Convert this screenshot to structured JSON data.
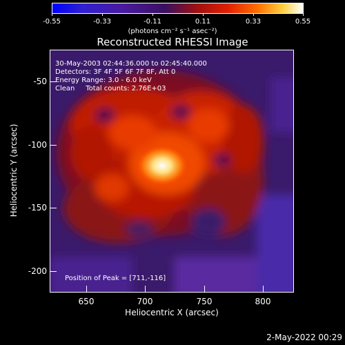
{
  "colorbar": {
    "ticks": [
      "-0.55",
      "-0.33",
      "-0.11",
      "0.11",
      "0.33",
      "0.55"
    ],
    "label": "(photons cm⁻² s⁻¹ asec⁻²)"
  },
  "title": "Reconstructed RHESSI Image",
  "annotations": {
    "time_range": "30-May-2003 02:44:36.000 to 02:45:40.000",
    "detectors": "Detectors: 3F 4F 5F 6F 7F 8F, Att 0",
    "energy": "Energy Range: 3.0 - 6.0 keV",
    "clean": "Clean     Total counts: 2.76E+03",
    "peak": "Position of Peak = [711,-116]"
  },
  "axes": {
    "xlabel": "Heliocentric X (arcsec)",
    "ylabel": "Heliocentric Y (arcsec)",
    "xticks": [
      "650",
      "700",
      "750",
      "800"
    ],
    "yticks": [
      "-50",
      "-100",
      "-150",
      "-200"
    ]
  },
  "footer": "2-May-2022 00:29"
}
